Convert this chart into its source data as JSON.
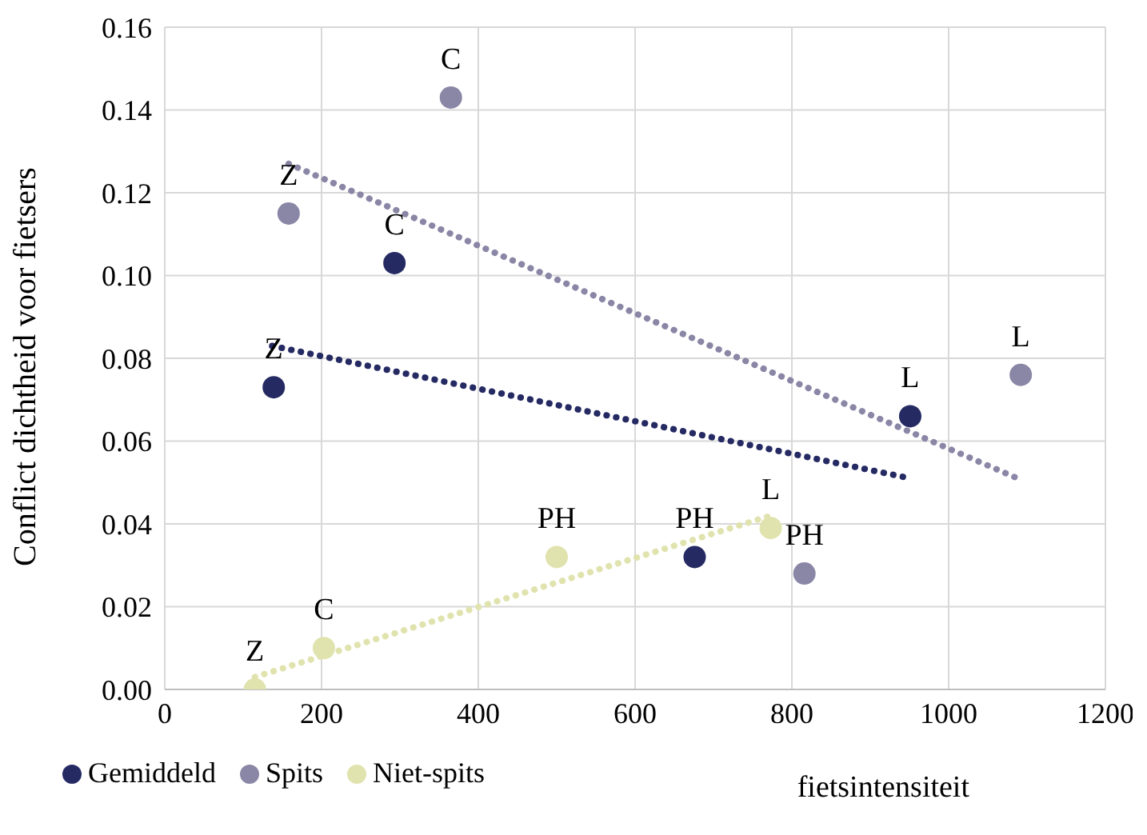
{
  "chart_data": {
    "type": "scatter",
    "xlabel": "fietsintensiteit",
    "ylabel": "Conflict dichtheid voor fietsers",
    "xlim": [
      0,
      1200
    ],
    "xticks": [
      0,
      200,
      400,
      600,
      800,
      1000,
      1200
    ],
    "ylim": [
      0,
      0.16
    ],
    "yticks": [
      {
        "value": 0,
        "label": "0.00"
      },
      {
        "value": 0.02,
        "label": "0.02"
      },
      {
        "value": 0.04,
        "label": "0.04"
      },
      {
        "value": 0.06,
        "label": "0.06"
      },
      {
        "value": 0.08,
        "label": "0.08"
      },
      {
        "value": 0.1,
        "label": "0.10"
      },
      {
        "value": 0.12,
        "label": "0.12"
      },
      {
        "value": 0.14,
        "label": "0.14"
      },
      {
        "value": 0.16,
        "label": "0.16"
      }
    ],
    "grid": true,
    "legend": "bottom left",
    "marker": "circle",
    "series": [
      {
        "name": "Gemiddeld",
        "color": "#252a63",
        "x": [
          139,
          293,
          676,
          951
        ],
        "values": [
          0.073,
          0.103,
          0.032,
          0.066
        ]
      },
      {
        "name": "Spits",
        "color": "#8a86a6",
        "x": [
          158,
          365,
          816,
          1092
        ],
        "values": [
          0.115,
          0.143,
          0.028,
          0.076
        ]
      },
      {
        "name": "Niet-spits",
        "color": "#e0e3ae",
        "x": [
          115,
          203,
          500,
          773
        ],
        "values": [
          0.0,
          0.01,
          0.032,
          0.039
        ]
      },
      {
        "type": "line",
        "color": "#252a63",
        "line_style": "dotted",
        "marker": "none",
        "x": [
          137,
          951
        ],
        "values": [
          0.083,
          0.051
        ]
      },
      {
        "type": "line",
        "color": "#8a86a6",
        "line_style": "dotted",
        "marker": "none",
        "x": [
          158,
          1088
        ],
        "values": [
          0.127,
          0.051
        ]
      },
      {
        "type": "line",
        "color": "#e0e3ae",
        "line_style": "dotted",
        "marker": "none",
        "x": [
          115,
          773
        ],
        "values": [
          0.003,
          0.042
        ]
      }
    ],
    "annotations": [
      {
        "text": "Z",
        "x": 139,
        "y": 0.073
      },
      {
        "text": "C",
        "x": 293,
        "y": 0.103
      },
      {
        "text": "PH",
        "x": 676,
        "y": 0.032
      },
      {
        "text": "L",
        "x": 951,
        "y": 0.066
      },
      {
        "text": "Z",
        "x": 158,
        "y": 0.115
      },
      {
        "text": "C",
        "x": 365,
        "y": 0.143
      },
      {
        "text": "PH",
        "x": 816,
        "y": 0.028
      },
      {
        "text": "L",
        "x": 1092,
        "y": 0.076
      },
      {
        "text": "Z",
        "x": 115,
        "y": 0.0
      },
      {
        "text": "C",
        "x": 203,
        "y": 0.01
      },
      {
        "text": "PH",
        "x": 500,
        "y": 0.032
      },
      {
        "text": "L",
        "x": 773,
        "y": 0.039
      }
    ]
  }
}
